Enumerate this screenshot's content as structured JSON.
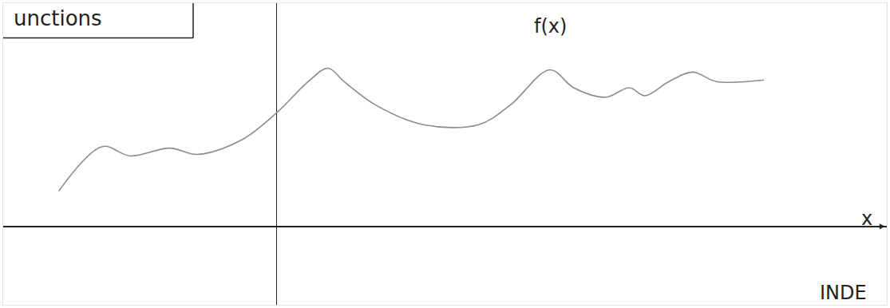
{
  "chart_data": {
    "type": "line",
    "title": "unctions",
    "series": [
      {
        "color": "#8c8c8c",
        "x": [
          -2.75,
          -2.2,
          -1.85,
          -1.35,
          -1.0,
          -0.45,
          0,
          0.4,
          0.65,
          0.85,
          1.25,
          1.85,
          2.55,
          2.95,
          3.45,
          3.75,
          4.15,
          4.45,
          4.65,
          4.95,
          5.25,
          5.55,
          6.15
        ],
        "values": [
          0.45,
          1.02,
          0.9,
          1.0,
          0.92,
          1.1,
          1.45,
          1.85,
          2.02,
          1.85,
          1.55,
          1.3,
          1.3,
          1.55,
          2.0,
          1.77,
          1.65,
          1.77,
          1.67,
          1.85,
          1.97,
          1.85,
          1.87
        ]
      }
    ],
    "annotations": [
      {
        "text": "f(x)",
        "x": 3.45,
        "y": 2.55
      },
      {
        "text": "x",
        "x": 7.45,
        "y": 0.1
      },
      {
        "text": "INDE",
        "x": 7.15,
        "y": -0.85
      }
    ],
    "xlim": [
      -3.45,
      7.7
    ],
    "ylim": [
      -1.0,
      2.85
    ],
    "xticks": [],
    "yticks": [],
    "tick_labels": false,
    "grid": false
  }
}
